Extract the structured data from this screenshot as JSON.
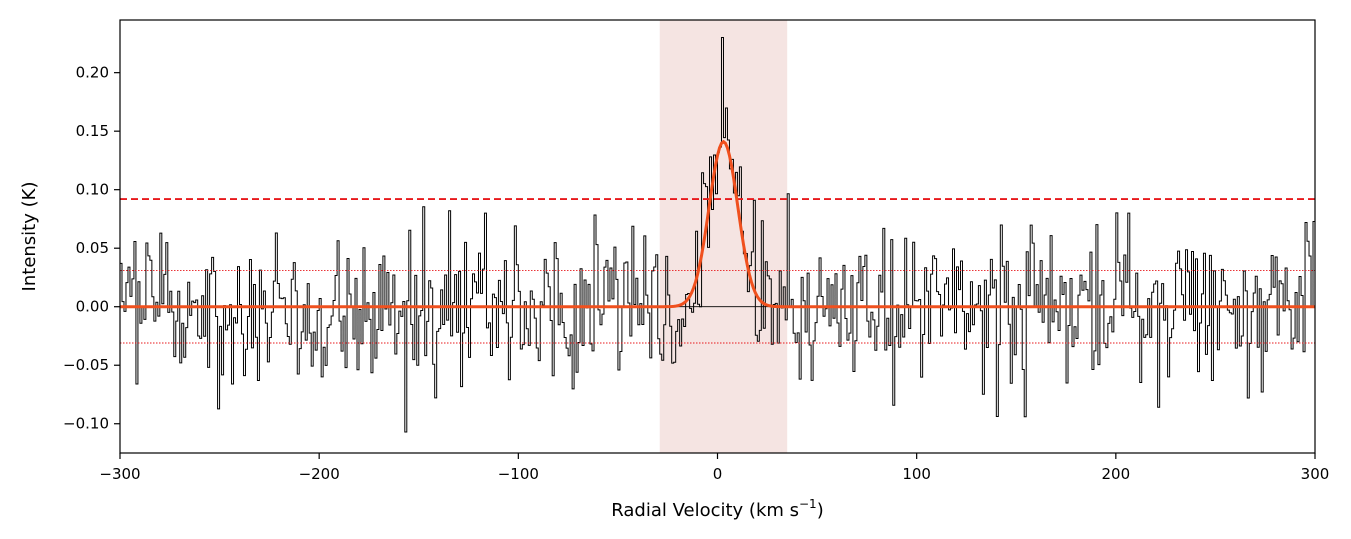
{
  "chart_data": {
    "type": "line",
    "title": "",
    "xlabel": "Radial Velocity (km s",
    "xlabel_sup": "−1",
    "xlabel_tail": ")",
    "ylabel": "Intensity (K)",
    "xlim": [
      -300,
      300
    ],
    "ylim": [
      -0.125,
      0.245
    ],
    "x_ticks": [
      -300,
      -200,
      -100,
      0,
      100,
      200,
      300
    ],
    "x_tick_labels": [
      "−300",
      "−200",
      "−100",
      "0",
      "100",
      "200",
      "300"
    ],
    "y_ticks": [
      -0.1,
      -0.05,
      0.0,
      0.05,
      0.1,
      0.15,
      0.2
    ],
    "y_tick_labels": [
      "−0.10",
      "−0.05",
      "0.00",
      "0.05",
      "0.10",
      "0.15",
      "0.20"
    ],
    "grid": false,
    "legend": "none",
    "shaded_region": {
      "x_range": [
        -29,
        35
      ],
      "color": "#f5e4e2"
    },
    "reference_lines": [
      {
        "name": "zero",
        "y": 0.0,
        "style": "solid",
        "color": "#000000"
      },
      {
        "name": "threshold",
        "y": 0.092,
        "style": "dashed",
        "color": "#e8191c"
      },
      {
        "name": "noise-upper",
        "y": 0.031,
        "style": "dotted",
        "color": "#e8191c"
      },
      {
        "name": "noise-lower",
        "y": -0.031,
        "style": "dotted",
        "color": "#e8191c"
      }
    ],
    "series": [
      {
        "role": "spectrum",
        "style": "step",
        "color": "#000000",
        "channel_width": 1.0,
        "noise_sigma": 0.031,
        "channels": 600,
        "highlights": [
          {
            "x": 2.0,
            "y": 0.23
          },
          {
            "x": -157.0,
            "y": -0.107
          },
          {
            "x": 154.0,
            "y": -0.094
          },
          {
            "x": -135.0,
            "y": 0.082
          },
          {
            "x": 206.0,
            "y": 0.08
          },
          {
            "x": 295.0,
            "y": 0.072
          },
          {
            "x": 18.0,
            "y": 0.091
          },
          {
            "x": -292.0,
            "y": -0.066
          }
        ]
      },
      {
        "role": "gaussian-fit",
        "style": "smooth",
        "color": "#f0501e",
        "amplitude": 0.141,
        "center": 3.0,
        "sigma": 7.2,
        "baseline": 0.0
      }
    ]
  }
}
